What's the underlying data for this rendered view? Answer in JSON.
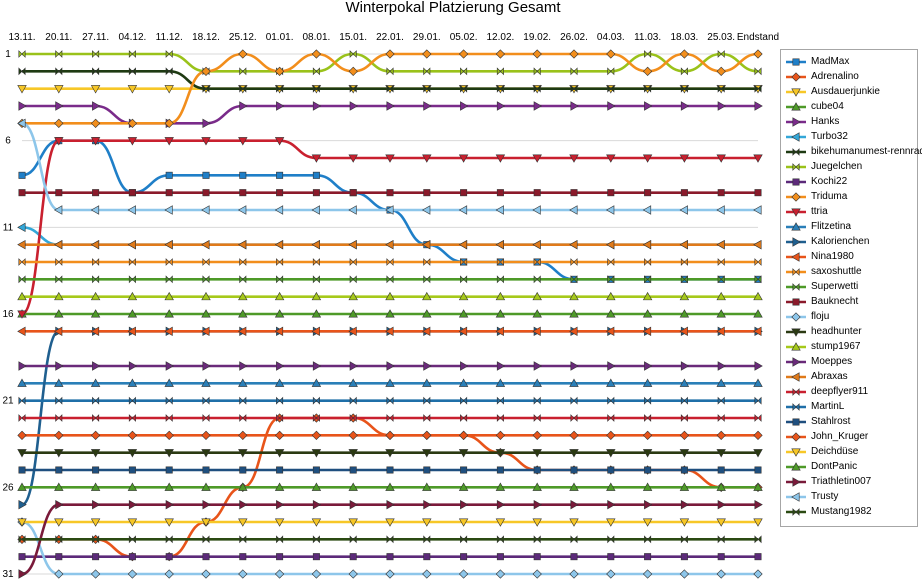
{
  "chart_data": {
    "type": "line",
    "title": "Winterpokal Platzierung Gesamt",
    "xlabel": "",
    "ylabel": "",
    "categories": [
      "13.11.",
      "20.11.",
      "27.11.",
      "04.12.",
      "11.12.",
      "18.12.",
      "25.12.",
      "01.01.",
      "08.01.",
      "15.01.",
      "22.01.",
      "29.01.",
      "05.02.",
      "12.02.",
      "19.02.",
      "26.02.",
      "04.03.",
      "11.03.",
      "18.03.",
      "25.03.",
      "Endstand"
    ],
    "y_ticks": [
      1,
      6,
      11,
      16,
      21,
      26,
      31
    ],
    "ylim": [
      1,
      31
    ],
    "y_inverted": true,
    "grid": "horizontal",
    "legend_position": "right",
    "series": [
      {
        "name": "MadMax",
        "color": "#1f7fc8",
        "marker": "square",
        "values": [
          8,
          6,
          6,
          9,
          8,
          8,
          8,
          8,
          8,
          9,
          10,
          12,
          13,
          13,
          13,
          14,
          14,
          14,
          14,
          14,
          14
        ]
      },
      {
        "name": "Adrenalino",
        "color": "#e8541a",
        "marker": "diamond",
        "values": [
          29,
          29,
          29,
          30,
          30,
          28,
          26,
          22,
          22,
          22,
          23,
          23,
          23,
          24,
          25,
          25,
          25,
          25,
          25,
          26,
          26
        ]
      },
      {
        "name": "Ausdauerjunkie",
        "color": "#f7c727",
        "marker": "triangle-down",
        "values": [
          3,
          3,
          3,
          3,
          3,
          3,
          3,
          3,
          3,
          3,
          3,
          3,
          3,
          3,
          3,
          3,
          3,
          3,
          3,
          3,
          3
        ]
      },
      {
        "name": "cube04",
        "color": "#4e9a28",
        "marker": "triangle",
        "values": [
          16,
          16,
          16,
          16,
          16,
          16,
          16,
          16,
          16,
          16,
          16,
          16,
          16,
          16,
          16,
          16,
          16,
          16,
          16,
          16,
          16
        ]
      },
      {
        "name": "Hanks",
        "color": "#7a2b8a",
        "marker": "triangle-right",
        "values": [
          4,
          4,
          4,
          5,
          5,
          5,
          4,
          4,
          4,
          4,
          4,
          4,
          4,
          4,
          4,
          4,
          4,
          4,
          4,
          4,
          4
        ]
      },
      {
        "name": "Turbo32",
        "color": "#33a7d8",
        "marker": "triangle-left",
        "values": [
          11,
          12,
          12,
          12,
          12,
          12,
          12,
          12,
          12,
          12,
          12,
          12,
          12,
          12,
          12,
          12,
          12,
          12,
          12,
          12,
          12
        ]
      },
      {
        "name": "bikehumanumest-rennrad",
        "color": "#1e3a12",
        "marker": "bowtie",
        "values": [
          2,
          2,
          2,
          2,
          2,
          3,
          3,
          3,
          3,
          3,
          3,
          3,
          3,
          3,
          3,
          3,
          3,
          3,
          3,
          3,
          3
        ]
      },
      {
        "name": "Juegelchen",
        "color": "#9ac21a",
        "marker": "bowtie",
        "values": [
          1,
          1,
          1,
          1,
          1,
          2,
          2,
          2,
          2,
          1,
          2,
          2,
          2,
          2,
          2,
          2,
          2,
          1,
          2,
          1,
          2
        ]
      },
      {
        "name": "Kochi22",
        "color": "#5c2a7a",
        "marker": "square",
        "values": [
          30,
          30,
          30,
          30,
          30,
          30,
          30,
          30,
          30,
          30,
          30,
          30,
          30,
          30,
          30,
          30,
          30,
          30,
          30,
          30,
          30
        ]
      },
      {
        "name": "Triduma",
        "color": "#f28e1c",
        "marker": "diamond",
        "values": [
          5,
          5,
          5,
          5,
          5,
          2,
          1,
          2,
          1,
          2,
          1,
          1,
          1,
          1,
          1,
          1,
          1,
          2,
          1,
          2,
          1
        ]
      },
      {
        "name": "ttria",
        "color": "#c9202f",
        "marker": "triangle-down",
        "values": [
          16,
          6,
          6,
          6,
          6,
          6,
          6,
          6,
          7,
          7,
          7,
          7,
          7,
          7,
          7,
          7,
          7,
          7,
          7,
          7,
          7
        ]
      },
      {
        "name": "Flitzetina",
        "color": "#2a7fb8",
        "marker": "triangle",
        "values": [
          20,
          20,
          20,
          20,
          20,
          20,
          20,
          20,
          20,
          20,
          20,
          20,
          20,
          20,
          20,
          20,
          20,
          20,
          20,
          20,
          20
        ]
      },
      {
        "name": "Kalorienchen",
        "color": "#1f5f8f",
        "marker": "triangle-right",
        "values": [
          27,
          17,
          17,
          17,
          17,
          17,
          17,
          17,
          17,
          17,
          17,
          17,
          17,
          17,
          17,
          17,
          17,
          17,
          17,
          17,
          17
        ]
      },
      {
        "name": "Nina1980",
        "color": "#e8541a",
        "marker": "triangle-left",
        "values": [
          17,
          17,
          17,
          17,
          17,
          17,
          17,
          17,
          17,
          17,
          17,
          17,
          17,
          17,
          17,
          17,
          17,
          17,
          17,
          17,
          17
        ]
      },
      {
        "name": "saxoshuttle",
        "color": "#f28e1c",
        "marker": "bowtie",
        "values": [
          13,
          13,
          13,
          13,
          13,
          13,
          13,
          13,
          13,
          13,
          13,
          13,
          13,
          13,
          13,
          13,
          13,
          13,
          13,
          13,
          13
        ]
      },
      {
        "name": "Superwetti",
        "color": "#4e9a28",
        "marker": "bowtie",
        "values": [
          14,
          14,
          14,
          14,
          14,
          14,
          14,
          14,
          14,
          14,
          14,
          14,
          14,
          14,
          14,
          14,
          14,
          14,
          14,
          14,
          14
        ]
      },
      {
        "name": "Bauknecht",
        "color": "#8b1a2b",
        "marker": "square",
        "values": [
          9,
          9,
          9,
          9,
          9,
          9,
          9,
          9,
          9,
          9,
          9,
          9,
          9,
          9,
          9,
          9,
          9,
          9,
          9,
          9,
          9
        ]
      },
      {
        "name": "floju",
        "color": "#8dc6ea",
        "marker": "diamond",
        "values": [
          28,
          31,
          31,
          31,
          31,
          31,
          31,
          31,
          31,
          31,
          31,
          31,
          31,
          31,
          31,
          31,
          31,
          31,
          31,
          31,
          31
        ]
      },
      {
        "name": "headhunter",
        "color": "#2b3a12",
        "marker": "triangle-down",
        "values": [
          24,
          24,
          24,
          24,
          24,
          24,
          24,
          24,
          24,
          24,
          24,
          24,
          24,
          24,
          24,
          24,
          24,
          24,
          24,
          24,
          24
        ]
      },
      {
        "name": "stump1967",
        "color": "#a6c91a",
        "marker": "triangle",
        "values": [
          15,
          15,
          15,
          15,
          15,
          15,
          15,
          15,
          15,
          15,
          15,
          15,
          15,
          15,
          15,
          15,
          15,
          15,
          15,
          15,
          15
        ]
      },
      {
        "name": "Moeppes",
        "color": "#6a2a7a",
        "marker": "triangle-right",
        "values": [
          19,
          19,
          19,
          19,
          19,
          19,
          19,
          19,
          19,
          19,
          19,
          19,
          19,
          19,
          19,
          19,
          19,
          19,
          19,
          19,
          19
        ]
      },
      {
        "name": "Abraxas",
        "color": "#e07a1a",
        "marker": "triangle-left",
        "values": [
          12,
          12,
          12,
          12,
          12,
          12,
          12,
          12,
          12,
          12,
          12,
          12,
          12,
          12,
          12,
          12,
          12,
          12,
          12,
          12,
          12
        ]
      },
      {
        "name": "deepflyer911",
        "color": "#c9202f",
        "marker": "bowtie",
        "values": [
          22,
          22,
          22,
          22,
          22,
          22,
          22,
          22,
          22,
          22,
          22,
          22,
          22,
          22,
          22,
          22,
          22,
          22,
          22,
          22,
          22
        ]
      },
      {
        "name": "MartinL",
        "color": "#1f6fa8",
        "marker": "bowtie",
        "values": [
          21,
          21,
          21,
          21,
          21,
          21,
          21,
          21,
          21,
          21,
          21,
          21,
          21,
          21,
          21,
          21,
          21,
          21,
          21,
          21,
          21
        ]
      },
      {
        "name": "Stahlrost",
        "color": "#1f4f7f",
        "marker": "square",
        "values": [
          25,
          25,
          25,
          25,
          25,
          25,
          25,
          25,
          25,
          25,
          25,
          25,
          25,
          25,
          25,
          25,
          25,
          25,
          25,
          25,
          25
        ]
      },
      {
        "name": "John_Kruger",
        "color": "#e8541a",
        "marker": "diamond",
        "values": [
          23,
          23,
          23,
          23,
          23,
          23,
          23,
          23,
          23,
          23,
          23,
          23,
          23,
          23,
          23,
          23,
          23,
          23,
          23,
          23,
          23
        ]
      },
      {
        "name": "Deichdüse",
        "color": "#f7c727",
        "marker": "triangle-down",
        "values": [
          28,
          28,
          28,
          28,
          28,
          28,
          28,
          28,
          28,
          28,
          28,
          28,
          28,
          28,
          28,
          28,
          28,
          28,
          28,
          28,
          28
        ]
      },
      {
        "name": "DontPanic",
        "color": "#4e9a28",
        "marker": "triangle",
        "values": [
          26,
          26,
          26,
          26,
          26,
          26,
          26,
          26,
          26,
          26,
          26,
          26,
          26,
          26,
          26,
          26,
          26,
          26,
          26,
          26,
          26
        ]
      },
      {
        "name": "Triathletin007",
        "color": "#7a1a3a",
        "marker": "triangle-right",
        "values": [
          31,
          27,
          27,
          27,
          27,
          27,
          27,
          27,
          27,
          27,
          27,
          27,
          27,
          27,
          27,
          27,
          27,
          27,
          27,
          27,
          27
        ]
      },
      {
        "name": "Trusty",
        "color": "#8dc6ea",
        "marker": "triangle-left",
        "values": [
          5,
          10,
          10,
          10,
          10,
          10,
          10,
          10,
          10,
          10,
          10,
          10,
          10,
          10,
          10,
          10,
          10,
          10,
          10,
          10,
          10
        ]
      },
      {
        "name": "Mustang1982",
        "color": "#2b4a12",
        "marker": "bowtie",
        "values": [
          29,
          29,
          29,
          29,
          29,
          29,
          29,
          29,
          29,
          29,
          29,
          29,
          29,
          29,
          29,
          29,
          29,
          29,
          29,
          29,
          29
        ]
      }
    ]
  }
}
